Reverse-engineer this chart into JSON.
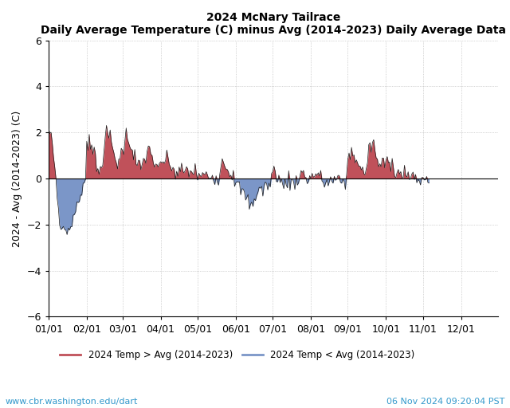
{
  "title_line1": "2024 McNary Tailrace",
  "title_line2": "Daily Average Temperature (C) minus Avg (2014-2023) Daily Average Data",
  "ylabel": "2024 - Avg (2014-2023) (C)",
  "ylim": [
    -6,
    6
  ],
  "yticks": [
    -6,
    -4,
    -2,
    0,
    2,
    4,
    6
  ],
  "xtick_labels": [
    "01/01",
    "02/01",
    "03/01",
    "04/01",
    "05/01",
    "06/01",
    "07/01",
    "08/01",
    "09/01",
    "10/01",
    "11/01",
    "12/01"
  ],
  "color_positive": "#c0515a",
  "color_negative": "#7b96c8",
  "line_color": "#1a1a1a",
  "zero_line_color": "#000000",
  "grid_color": "#b0b0b0",
  "legend_pos_label": "2024 Temp > Avg (2014-2023)",
  "legend_neg_label": "2024 Temp < Avg (2014-2023)",
  "url_text": "www.cbr.washington.edu/dart",
  "date_text": "06 Nov 2024 09:20:04 PST",
  "background_color": "#ffffff",
  "title_fontsize": 10,
  "axis_fontsize": 9,
  "tick_fontsize": 9,
  "month_starts": [
    0,
    31,
    60,
    91,
    121,
    152,
    182,
    213,
    243,
    274,
    304,
    335
  ],
  "xlim": [
    0,
    365
  ]
}
